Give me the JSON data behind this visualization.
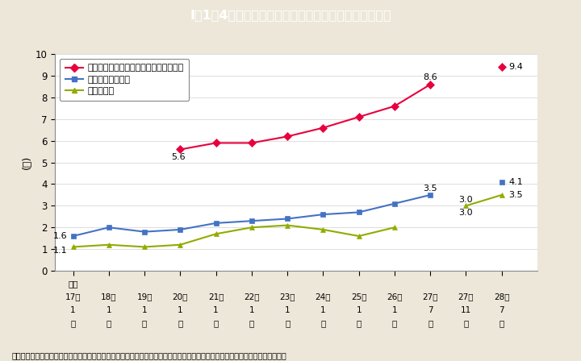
{
  "title": "I－1－4図　役職段階別国家公務員の女性の割合の推移",
  "title_bg_color": "#29b6c8",
  "bg_color": "#ede7d9",
  "plot_bg_color": "#ffffff",
  "ylabel": "(％)",
  "footnote": "（備考）内閣官房内閣人事局「女性国家公務員の登用状況及び国家公務員の育児休業等の取得状況のフォローアップ」より作成。",
  "legend_labels": [
    "国の地方機関課長・本省課長補佐相当職",
    "本省課室長相当職",
    "指定職相当"
  ],
  "x_labels_line1": [
    "平成",
    "",
    "",
    "",
    "",
    "",
    "",
    "",
    "",
    "",
    "",
    "",
    ""
  ],
  "x_labels_line2": [
    "17年",
    "18年",
    "19年",
    "20年",
    "21年",
    "22年",
    "23年",
    "24年",
    "25年",
    "26年",
    "27年",
    "27年",
    "28年"
  ],
  "x_labels_line3": [
    "1",
    "1",
    "1",
    "1",
    "1",
    "1",
    "1",
    "1",
    "1",
    "1",
    "7",
    "11",
    "7"
  ],
  "x_labels_line4": [
    "月",
    "月",
    "月",
    "月",
    "月",
    "月",
    "月",
    "月",
    "月",
    "月",
    "月",
    "月",
    "月"
  ],
  "pink_vals": [
    null,
    null,
    null,
    5.6,
    5.9,
    5.9,
    6.2,
    6.6,
    7.1,
    7.6,
    8.6,
    null,
    9.4
  ],
  "blue_vals": [
    1.6,
    2.0,
    1.8,
    1.9,
    2.2,
    2.3,
    2.4,
    2.6,
    2.7,
    3.1,
    3.5,
    null,
    4.1
  ],
  "green_vals": [
    1.1,
    1.2,
    1.1,
    1.2,
    1.7,
    2.0,
    2.1,
    1.9,
    1.6,
    2.0,
    null,
    3.0,
    3.5
  ],
  "pink_color": "#e8003d",
  "blue_color": "#4472c4",
  "green_color": "#92ab00",
  "ylim": [
    0,
    10
  ],
  "yticks": [
    0,
    1,
    2,
    3,
    4,
    5,
    6,
    7,
    8,
    9,
    10
  ]
}
